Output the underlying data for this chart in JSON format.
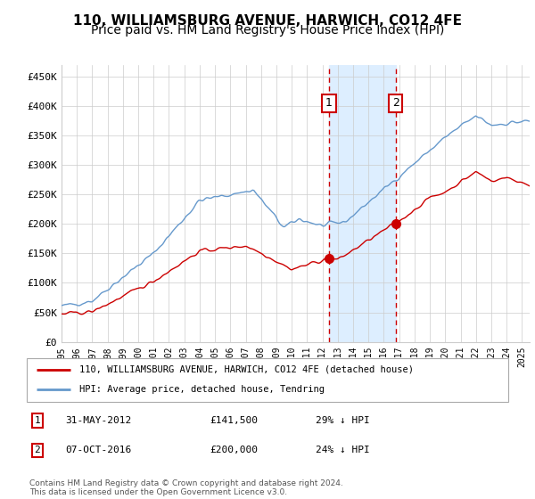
{
  "title": "110, WILLIAMSBURG AVENUE, HARWICH, CO12 4FE",
  "subtitle": "Price paid vs. HM Land Registry's House Price Index (HPI)",
  "ylim": [
    0,
    470000
  ],
  "xlim_start": 1995.0,
  "xlim_end": 2025.5,
  "hpi_color": "#6699cc",
  "property_color": "#cc0000",
  "sale1_date_num": 2012.42,
  "sale1_price": 141500,
  "sale2_date_num": 2016.77,
  "sale2_price": 200000,
  "legend_property": "110, WILLIAMSBURG AVENUE, HARWICH, CO12 4FE (detached house)",
  "legend_hpi": "HPI: Average price, detached house, Tendring",
  "table_row1": [
    "1",
    "31-MAY-2012",
    "£141,500",
    "29% ↓ HPI"
  ],
  "table_row2": [
    "2",
    "07-OCT-2016",
    "£200,000",
    "24% ↓ HPI"
  ],
  "footnote": "Contains HM Land Registry data © Crown copyright and database right 2024.\nThis data is licensed under the Open Government Licence v3.0.",
  "background_color": "#ffffff",
  "shaded_region_color": "#ddeeff",
  "grid_color": "#cccccc",
  "title_fontsize": 11,
  "subtitle_fontsize": 10,
  "tick_fontsize": 8,
  "ytick_labels": [
    "£0",
    "£50K",
    "£100K",
    "£150K",
    "£200K",
    "£250K",
    "£300K",
    "£350K",
    "£400K",
    "£450K"
  ],
  "ytick_values": [
    0,
    50000,
    100000,
    150000,
    200000,
    250000,
    300000,
    350000,
    400000,
    450000
  ]
}
